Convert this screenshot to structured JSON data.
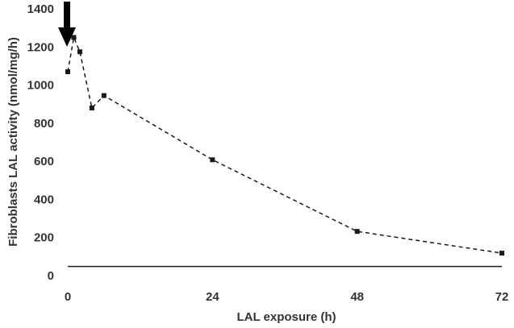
{
  "chart_data": {
    "type": "line",
    "xlabel": "LAL exposure (h)",
    "ylabel": "Fibroblasts LAL activity (nmol/mg/h)",
    "xlim": [
      0,
      72
    ],
    "ylim": [
      0,
      1400
    ],
    "x_ticks": [
      "0",
      "24",
      "48",
      "72"
    ],
    "y_ticks": [
      "0",
      "200",
      "400",
      "600",
      "800",
      "1000",
      "1200",
      "1400"
    ],
    "series": [
      {
        "line_style": "dashed",
        "marker": "square",
        "color": "#1a1a1a",
        "points": [
          {
            "x": 0,
            "y": 1070
          },
          {
            "x": 1,
            "y": 1250
          },
          {
            "x": 2,
            "y": 1175
          },
          {
            "x": 4,
            "y": 880
          },
          {
            "x": 6,
            "y": 945
          },
          {
            "x": 24,
            "y": 608
          },
          {
            "x": 48,
            "y": 232
          },
          {
            "x": 72,
            "y": 118
          }
        ]
      }
    ],
    "reference_line": {
      "y": 48,
      "style": "solid",
      "color": "#1a1a1a"
    },
    "annotation": {
      "type": "arrow",
      "direction": "down",
      "x": 0,
      "color": "#000000"
    }
  }
}
